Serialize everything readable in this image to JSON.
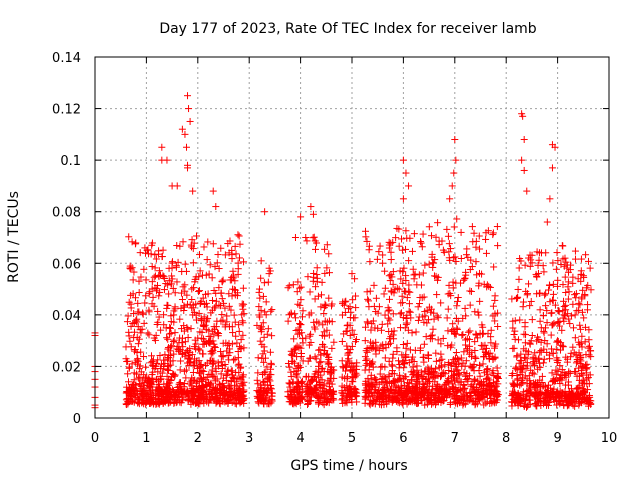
{
  "chart_data": {
    "type": "scatter",
    "title": "Day 177 of 2023, Rate Of TEC Index for receiver lamb",
    "xlabel": "GPS time / hours",
    "ylabel": "ROTI / TECUs",
    "xlim": [
      0,
      10
    ],
    "ylim": [
      0,
      0.14
    ],
    "xticks": [
      "0",
      "1",
      "2",
      "3",
      "4",
      "5",
      "6",
      "7",
      "8",
      "9",
      "10"
    ],
    "yticks": [
      "0",
      "0.02",
      "0.04",
      "0.06",
      "0.08",
      "0.1",
      "0.12",
      "0.14"
    ],
    "grid": true,
    "marker": "+",
    "color": "#ff0000",
    "series": [
      {
        "name": "ROTI",
        "points": [
          [
            0.0,
            0.033
          ],
          [
            0.0,
            0.032
          ],
          [
            0.0,
            0.02
          ],
          [
            0.0,
            0.018
          ],
          [
            0.0,
            0.015
          ],
          [
            0.0,
            0.012
          ],
          [
            0.0,
            0.008
          ],
          [
            0.0,
            0.005
          ],
          [
            0.0,
            0.004
          ],
          [
            1.3,
            0.1
          ],
          [
            1.3,
            0.105
          ],
          [
            1.4,
            0.1
          ],
          [
            1.5,
            0.09
          ],
          [
            1.6,
            0.09
          ],
          [
            1.7,
            0.112
          ],
          [
            1.75,
            0.11
          ],
          [
            1.78,
            0.105
          ],
          [
            1.8,
            0.125
          ],
          [
            1.82,
            0.12
          ],
          [
            1.85,
            0.115
          ],
          [
            1.8,
            0.098
          ],
          [
            1.8,
            0.097
          ],
          [
            1.9,
            0.088
          ],
          [
            2.3,
            0.088
          ],
          [
            2.35,
            0.082
          ],
          [
            3.3,
            0.08
          ],
          [
            4.2,
            0.082
          ],
          [
            4.25,
            0.079
          ],
          [
            4.0,
            0.078
          ],
          [
            3.9,
            0.07
          ],
          [
            4.1,
            0.07
          ],
          [
            6.0,
            0.1
          ],
          [
            6.05,
            0.095
          ],
          [
            6.1,
            0.09
          ],
          [
            6.0,
            0.085
          ],
          [
            7.0,
            0.108
          ],
          [
            7.02,
            0.1
          ],
          [
            6.98,
            0.095
          ],
          [
            6.95,
            0.09
          ],
          [
            6.9,
            0.085
          ],
          [
            8.3,
            0.118
          ],
          [
            8.32,
            0.117
          ],
          [
            8.35,
            0.108
          ],
          [
            8.3,
            0.1
          ],
          [
            8.35,
            0.096
          ],
          [
            8.4,
            0.088
          ],
          [
            8.9,
            0.106
          ],
          [
            8.95,
            0.105
          ],
          [
            8.9,
            0.097
          ],
          [
            8.85,
            0.085
          ],
          [
            8.8,
            0.076
          ],
          [
            9.4,
            0.054
          ],
          [
            9.45,
            0.053
          ],
          [
            3.2,
            0.05
          ],
          [
            5.0,
            0.056
          ],
          [
            5.05,
            0.054
          ]
        ]
      }
    ],
    "clusters": [
      {
        "x_start": 0.6,
        "x_end": 2.9,
        "y_base": 0.008,
        "y_peak": 0.07,
        "density": 1100
      },
      {
        "x_start": 3.15,
        "x_end": 3.45,
        "y_base": 0.008,
        "y_peak": 0.06,
        "density": 120
      },
      {
        "x_start": 3.75,
        "x_end": 4.05,
        "y_base": 0.008,
        "y_peak": 0.055,
        "density": 130
      },
      {
        "x_start": 4.1,
        "x_end": 4.65,
        "y_base": 0.008,
        "y_peak": 0.07,
        "density": 220
      },
      {
        "x_start": 4.8,
        "x_end": 5.1,
        "y_base": 0.008,
        "y_peak": 0.045,
        "density": 120
      },
      {
        "x_start": 5.25,
        "x_end": 7.85,
        "y_base": 0.008,
        "y_peak": 0.075,
        "density": 1100
      },
      {
        "x_start": 8.1,
        "x_end": 9.65,
        "y_base": 0.007,
        "y_peak": 0.065,
        "density": 650
      }
    ]
  }
}
